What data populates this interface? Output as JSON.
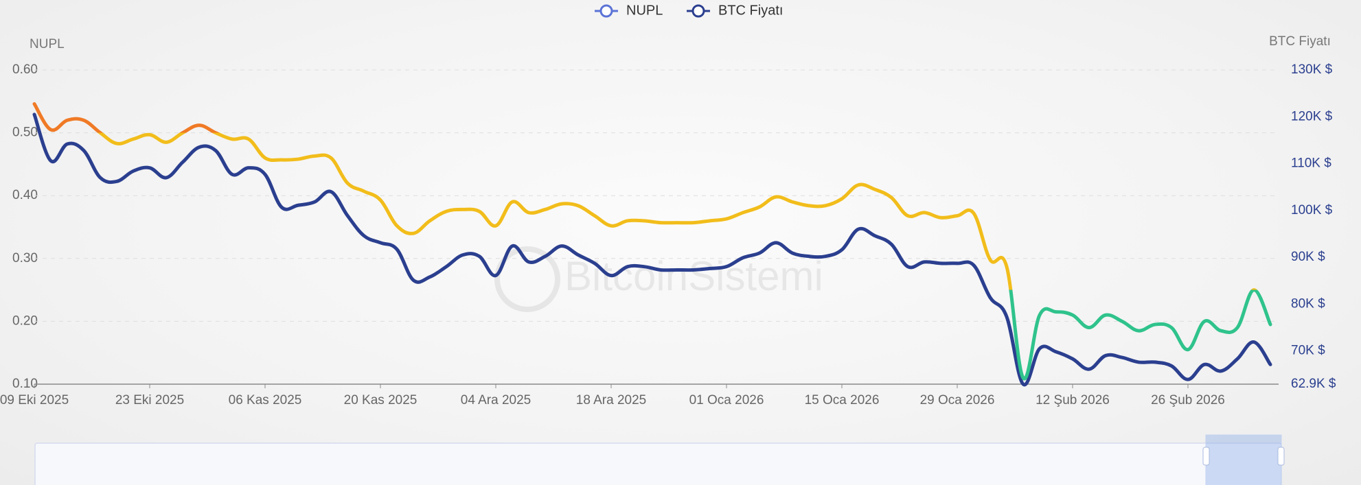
{
  "chart_data": {
    "type": "line",
    "legend": "top-center",
    "grid": true,
    "watermark": "BitcoinSistemi",
    "y_axis_name": "NUPL",
    "y2_axis_name": "BTC Fiyatı",
    "categories": [
      "09 Eki 2025",
      null,
      null,
      null,
      null,
      null,
      null,
      "23 Eki 2025",
      null,
      null,
      null,
      null,
      null,
      null,
      "06 Kas 2025",
      null,
      null,
      null,
      null,
      null,
      null,
      "20 Kas 2025",
      null,
      null,
      null,
      null,
      null,
      null,
      "04 Ara 2025",
      null,
      null,
      null,
      null,
      null,
      null,
      "18 Ara 2025",
      null,
      null,
      null,
      null,
      null,
      null,
      "01 Oca 2026",
      null,
      null,
      null,
      null,
      null,
      null,
      "15 Oca 2026",
      null,
      null,
      null,
      null,
      null,
      null,
      "29 Oca 2026",
      null,
      null,
      null,
      null,
      null,
      null,
      "12 Şub 2026",
      null,
      null,
      null,
      null,
      null,
      null,
      "26 Şub 2026",
      null,
      null,
      null,
      null,
      null
    ],
    "ylim": [
      0.1,
      0.6
    ],
    "yticks": [
      {
        "value": 0.1,
        "label": "0.10"
      },
      {
        "value": 0.2,
        "label": "0.20"
      },
      {
        "value": 0.3,
        "label": "0.30"
      },
      {
        "value": 0.4,
        "label": "0.40"
      },
      {
        "value": 0.5,
        "label": "0.50"
      },
      {
        "value": 0.6,
        "label": "0.60"
      }
    ],
    "y2lim": [
      62900,
      130000
    ],
    "y2ticks": [
      {
        "value": 62900,
        "label": "62.9K $"
      },
      {
        "value": 70000,
        "label": "70K $"
      },
      {
        "value": 80000,
        "label": "80K $"
      },
      {
        "value": 90000,
        "label": "90K $"
      },
      {
        "value": 100000,
        "label": "100K $"
      },
      {
        "value": 110000,
        "label": "110K $"
      },
      {
        "value": 120000,
        "label": "120K $"
      },
      {
        "value": 130000,
        "label": "130K $"
      }
    ],
    "visual_map": [
      {
        "gt": 0.5,
        "color": "#f07a26"
      },
      {
        "gt": 0.25,
        "lte": 0.5,
        "color": "#f2bd1b"
      },
      {
        "lte": 0.25,
        "color": "#2fc38c"
      }
    ],
    "series": [
      {
        "name": "NUPL",
        "color": "#5b73d6",
        "axis": "y",
        "values": [
          0.546,
          0.505,
          0.52,
          0.52,
          0.5,
          0.483,
          0.49,
          0.497,
          0.485,
          0.5,
          0.512,
          0.5,
          0.49,
          0.49,
          0.46,
          0.457,
          0.458,
          0.463,
          0.46,
          0.42,
          0.407,
          0.393,
          0.352,
          0.34,
          0.36,
          0.375,
          0.378,
          0.375,
          0.352,
          0.39,
          0.373,
          0.378,
          0.387,
          0.384,
          0.368,
          0.352,
          0.36,
          0.36,
          0.357,
          0.357,
          0.357,
          0.36,
          0.363,
          0.373,
          0.382,
          0.398,
          0.39,
          0.384,
          0.384,
          0.395,
          0.417,
          0.41,
          0.397,
          0.368,
          0.373,
          0.365,
          0.368,
          0.372,
          0.298,
          0.287,
          0.11,
          0.21,
          0.215,
          0.21,
          0.19,
          0.21,
          0.2,
          0.185,
          0.195,
          0.19,
          0.155,
          0.2,
          0.185,
          0.19,
          0.25,
          0.195
        ]
      },
      {
        "name": "BTC Fiyatı",
        "color": "#2b3f8f",
        "axis": "y2",
        "values": [
          120500,
          110600,
          114200,
          112800,
          107000,
          106200,
          108400,
          109100,
          107000,
          110300,
          113500,
          112800,
          107700,
          109100,
          107700,
          100700,
          101100,
          101800,
          104000,
          98900,
          94600,
          93100,
          91700,
          85100,
          85800,
          88000,
          90500,
          90200,
          86100,
          92400,
          89000,
          90200,
          92400,
          90500,
          88700,
          86100,
          88000,
          88000,
          87300,
          87300,
          87300,
          87600,
          88000,
          89900,
          90900,
          93100,
          90900,
          90200,
          90200,
          91600,
          96000,
          94600,
          92800,
          88000,
          89000,
          88700,
          88700,
          88300,
          81400,
          77300,
          62900,
          70500,
          69800,
          68300,
          66100,
          69000,
          68600,
          67600,
          67600,
          66800,
          63900,
          67100,
          65700,
          68300,
          71900,
          67100
        ]
      }
    ]
  }
}
